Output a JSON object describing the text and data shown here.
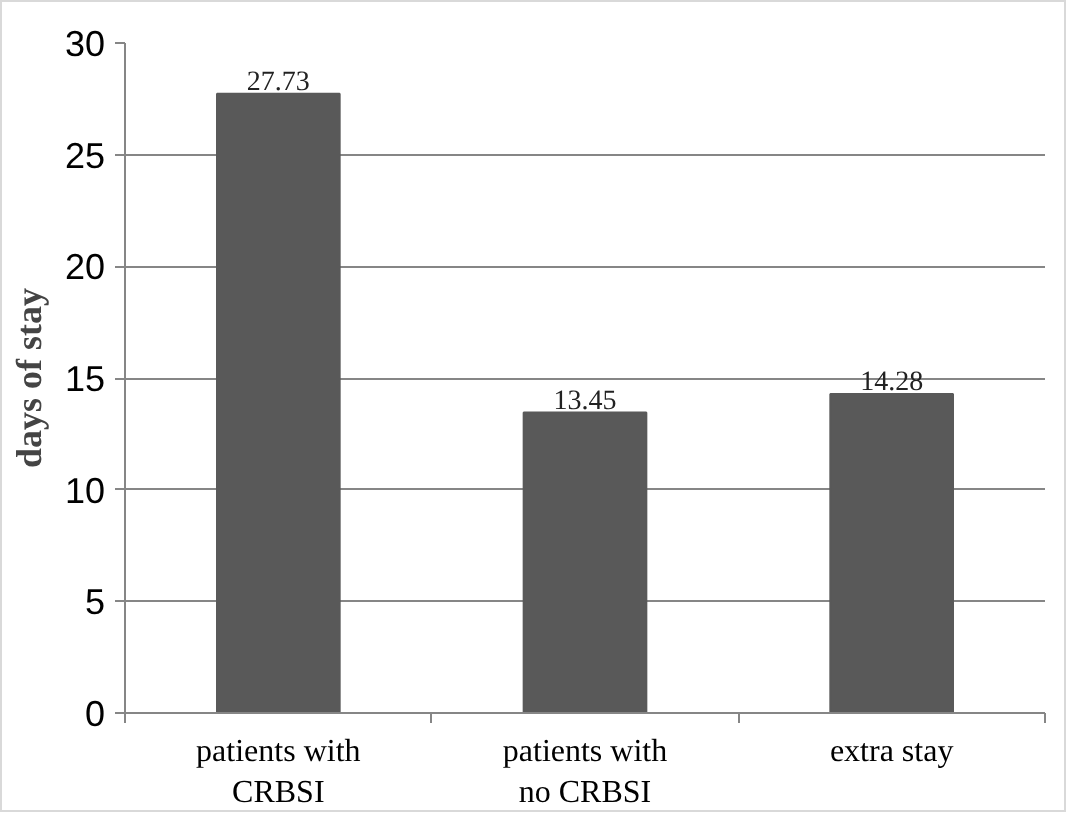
{
  "chart_data": {
    "type": "bar",
    "ylabel": "days of stay",
    "categories": [
      "patients with CRBSI",
      "patients with no CRBSI",
      "extra stay"
    ],
    "values": [
      27.73,
      13.45,
      14.28
    ],
    "color": "#595959",
    "ylim": [
      0,
      30
    ],
    "yticks": [
      0,
      5,
      10,
      15,
      20,
      25,
      30
    ],
    "grid": "y",
    "data_labels": true
  }
}
